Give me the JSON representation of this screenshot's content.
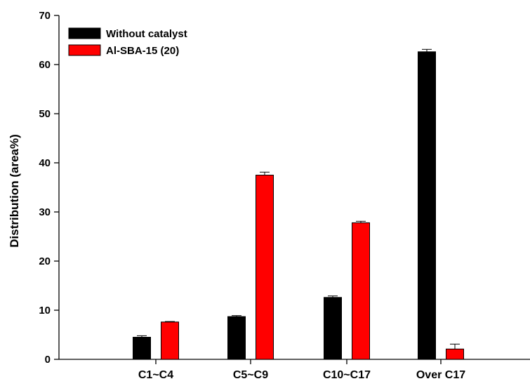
{
  "chart_data": {
    "type": "bar",
    "title": "",
    "xlabel": "",
    "ylabel": "Distribution (area%)",
    "ylim": [
      0,
      70
    ],
    "yticks": [
      0,
      10,
      20,
      30,
      40,
      50,
      60,
      70
    ],
    "grid": false,
    "legend_position": "top-left",
    "categories": [
      "C1~C4",
      "C5~C9",
      "C10~C17",
      "Over C17"
    ],
    "series": [
      {
        "name": "Without catalyst",
        "color": "#000000",
        "values": [
          4.5,
          8.7,
          12.6,
          62.6
        ],
        "errors": [
          0.3,
          0.2,
          0.3,
          0.5
        ]
      },
      {
        "name": "Al-SBA-15 (20)",
        "color": "#ff0000",
        "values": [
          7.6,
          37.5,
          27.8,
          2.1
        ],
        "errors": [
          0.1,
          0.6,
          0.3,
          1.0
        ]
      }
    ]
  }
}
